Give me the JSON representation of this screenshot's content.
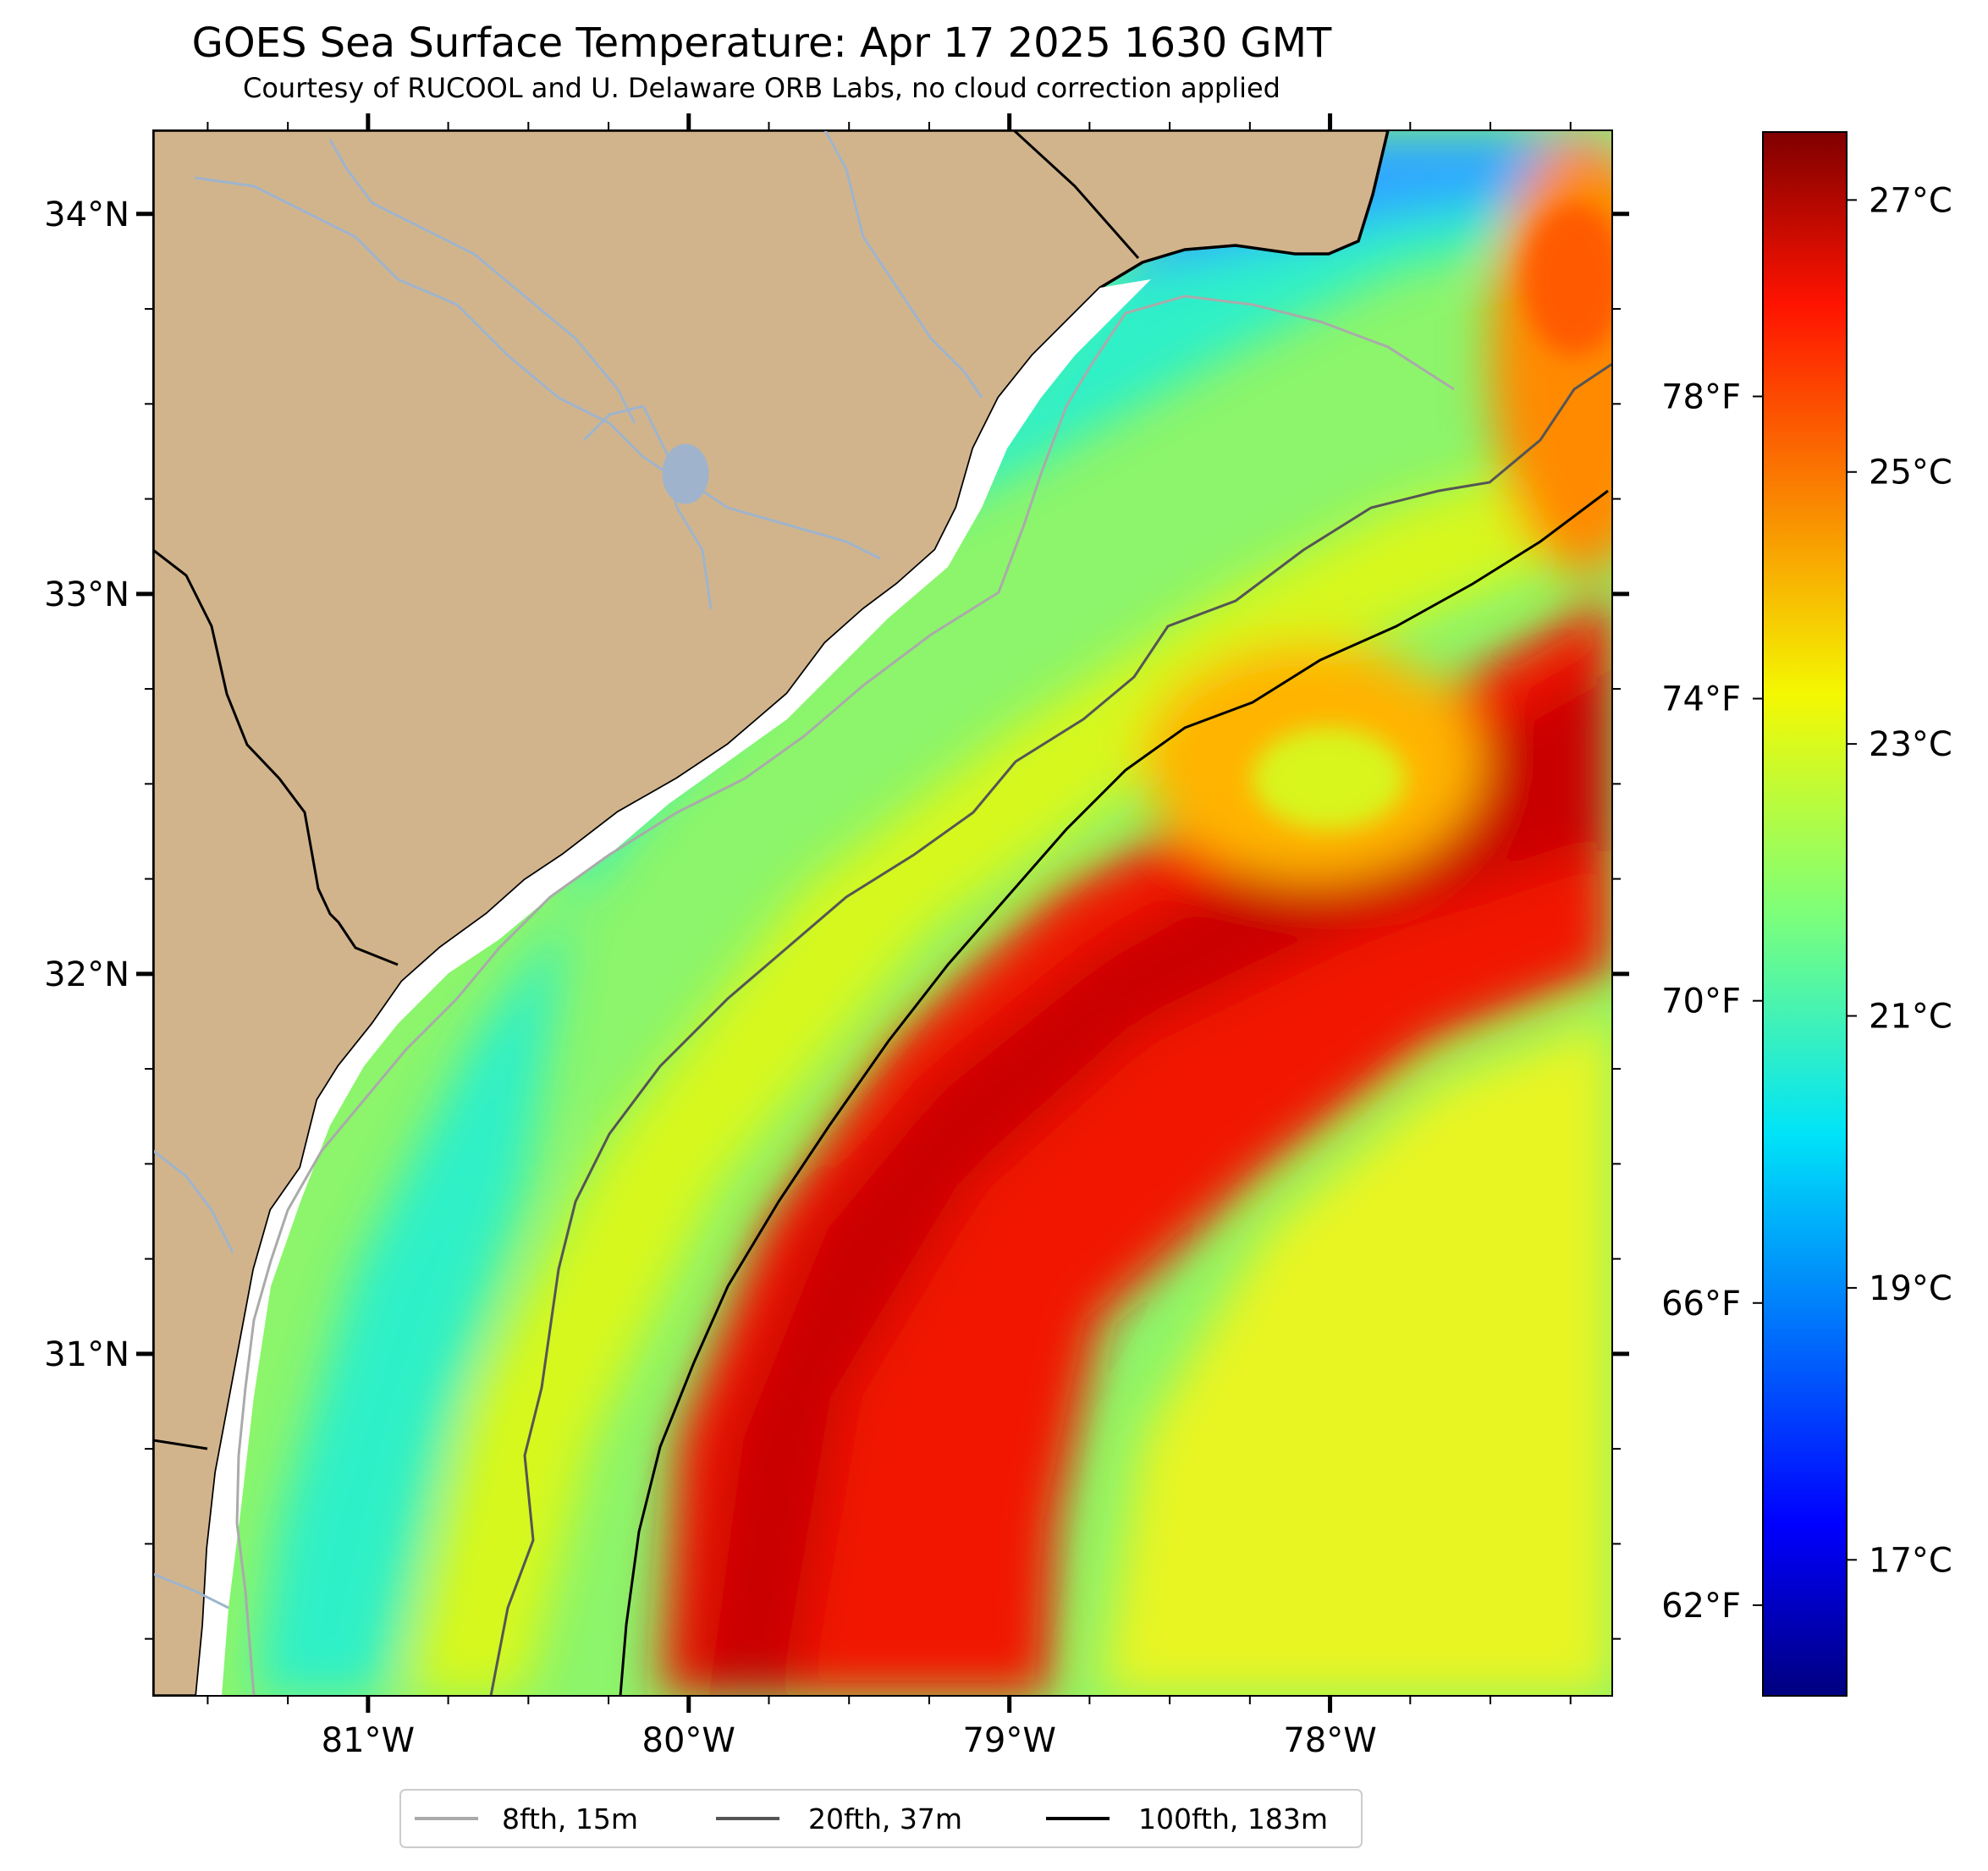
{
  "title": "GOES Sea Surface Temperature: Apr 17 2025 1630 GMT",
  "subtitle": "Courtesy of RUCOOL and U. Delaware ORB Labs, no cloud correction applied",
  "map": {
    "lon_range": [
      -81.67,
      -77.12
    ],
    "lat_range": [
      30.1,
      34.22
    ],
    "lat_ticks": [
      {
        "value": 34,
        "label": "34°N"
      },
      {
        "value": 33,
        "label": "33°N"
      },
      {
        "value": 32,
        "label": "32°N"
      },
      {
        "value": 31,
        "label": "31°N"
      }
    ],
    "lon_ticks": [
      {
        "value": -81,
        "label": "81°W"
      },
      {
        "value": -80,
        "label": "80°W"
      },
      {
        "value": -79,
        "label": "79°W"
      },
      {
        "value": -78,
        "label": "78°W"
      }
    ],
    "land_color": "#d2b48c",
    "river_color": "#9fb4cc"
  },
  "colorbar": {
    "colormap": "jet",
    "range_c": [
      16,
      27.5
    ],
    "celsius_ticks": [
      {
        "value": 27,
        "label": "27°C"
      },
      {
        "value": 25,
        "label": "25°C"
      },
      {
        "value": 23,
        "label": "23°C"
      },
      {
        "value": 21,
        "label": "21°C"
      },
      {
        "value": 19,
        "label": "19°C"
      },
      {
        "value": 17,
        "label": "17°C"
      }
    ],
    "fahrenheit_ticks": [
      {
        "value": 78,
        "label": "78°F"
      },
      {
        "value": 74,
        "label": "74°F"
      },
      {
        "value": 70,
        "label": "70°F"
      },
      {
        "value": 66,
        "label": "66°F"
      },
      {
        "value": 62,
        "label": "62°F"
      }
    ]
  },
  "legend": [
    {
      "label": "8fth, 15m",
      "color": "#aaaaaa"
    },
    {
      "label": "20fth, 37m",
      "color": "#555555"
    },
    {
      "label": "100fth, 183m",
      "color": "#000000"
    }
  ]
}
